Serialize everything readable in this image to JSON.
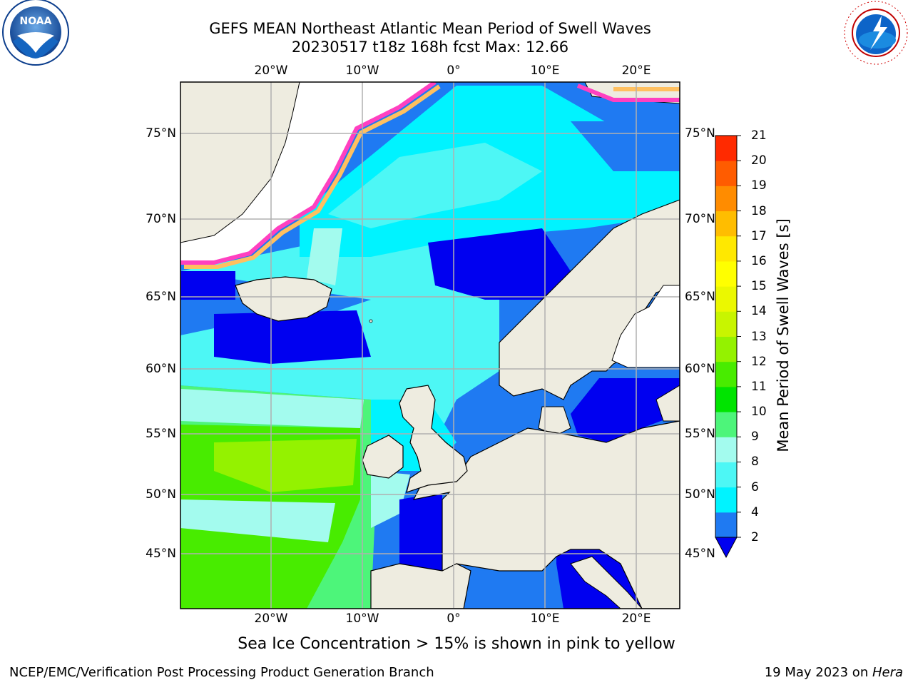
{
  "header": {
    "title_line1": "GEFS MEAN Northeast Atlantic Mean Period of Swell Waves",
    "title_line2": "20230517 t18z 168h fcst   Max: 12.66"
  },
  "map": {
    "lon_labels": [
      "20°W",
      "10°W",
      "0°",
      "10°E",
      "20°E"
    ],
    "lat_labels": [
      "75°N",
      "70°N",
      "65°N",
      "60°N",
      "55°N",
      "50°N",
      "45°N"
    ]
  },
  "colorbar": {
    "label": "Mean Period of Swell Waves [s]",
    "ticks": [
      "2",
      "4",
      "6",
      "8",
      "9",
      "10",
      "11",
      "12",
      "13",
      "14",
      "15",
      "16",
      "17",
      "18",
      "19",
      "20",
      "21"
    ],
    "colors": [
      "#1f7af2",
      "#00f3ff",
      "#4df7f5",
      "#a3fbee",
      "#4df57a",
      "#00e400",
      "#48ec00",
      "#94f200",
      "#c8f500",
      "#ebf800",
      "#ffff00",
      "#ffe800",
      "#ffbd00",
      "#ff8c00",
      "#ff5c00",
      "#ff2a00"
    ],
    "under_color": "#0000f0"
  },
  "logos": {
    "noaa_text": "NOAA",
    "nws_text": "NATIONAL WEATHER SERVICE"
  },
  "note": "Sea Ice Concentration > 15% is shown in pink to yellow",
  "footer": {
    "left": "NCEP/EMC/Verification Post Processing Product Generation Branch",
    "date": "19 May 2023 on ",
    "machine": "Hera"
  }
}
